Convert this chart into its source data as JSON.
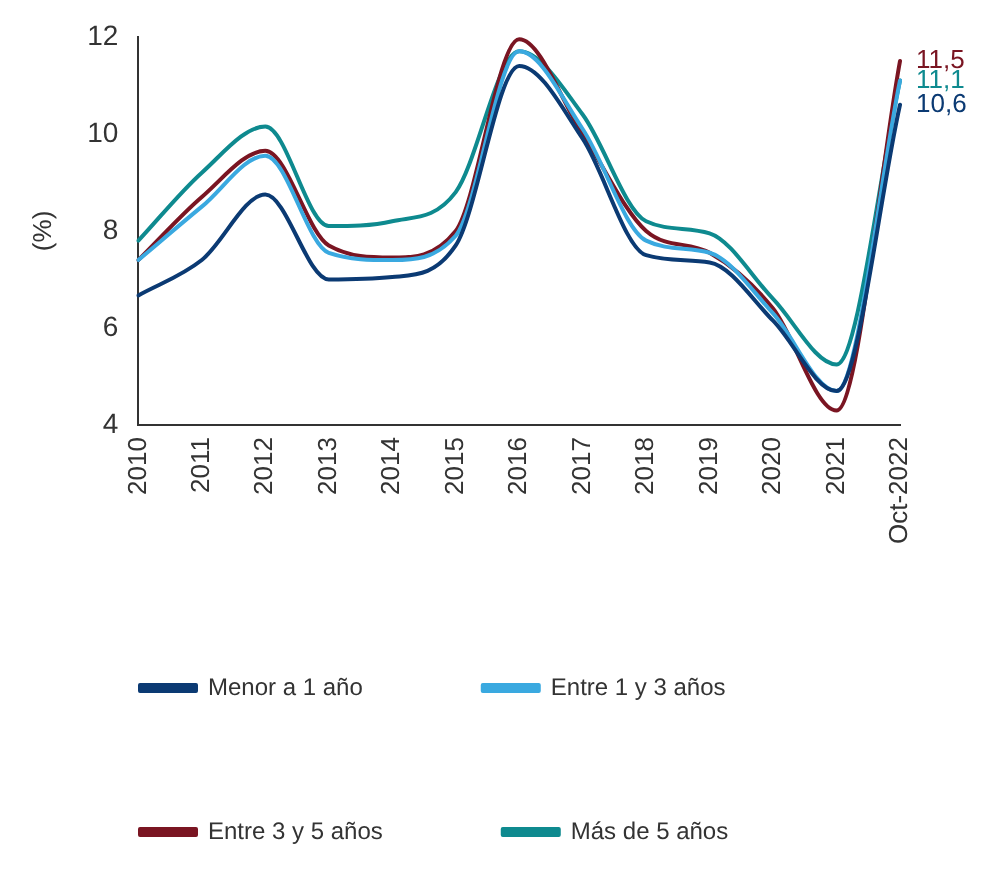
{
  "chart_data": {
    "type": "line",
    "ylabel": "(%)",
    "categories": [
      "2010",
      "2011",
      "2012",
      "2013",
      "2014",
      "2015",
      "2016",
      "2017",
      "2018",
      "2019",
      "2020",
      "2021",
      "Oct-2022"
    ],
    "ylim": [
      4,
      12
    ],
    "yticks": [
      4,
      6,
      8,
      10,
      12
    ],
    "grid": false,
    "legend": "bottom",
    "marker": "none",
    "line_style": "solid",
    "series": [
      {
        "name": "Menor a 1 año",
        "color": "#0b3a73",
        "values": [
          6.67,
          7.4,
          8.75,
          7.0,
          7.05,
          7.7,
          11.4,
          9.9,
          7.5,
          7.35,
          6.15,
          4.7,
          10.6
        ],
        "value_labels": [
          null,
          null,
          null,
          null,
          null,
          null,
          null,
          null,
          null,
          null,
          null,
          null,
          "10,6"
        ]
      },
      {
        "name": "Entre 1 y 3 años",
        "color": "#3aa9e0",
        "values": [
          7.4,
          8.5,
          9.55,
          7.55,
          7.4,
          7.9,
          11.7,
          10.1,
          7.8,
          7.55,
          6.3,
          4.7,
          11.1
        ]
      },
      {
        "name": "Entre 3 y 5 años",
        "color": "#7a1522",
        "values": [
          7.4,
          8.7,
          9.65,
          7.7,
          7.45,
          8.0,
          11.95,
          10.0,
          8.0,
          7.55,
          6.4,
          4.3,
          11.5
        ],
        "value_labels": [
          null,
          null,
          null,
          null,
          null,
          null,
          null,
          null,
          null,
          null,
          null,
          null,
          "11,5"
        ]
      },
      {
        "name": "Más de 5 años",
        "color": "#0e8a8f",
        "values": [
          7.8,
          9.2,
          10.15,
          8.1,
          8.2,
          8.8,
          11.7,
          10.4,
          8.2,
          7.95,
          6.6,
          5.25,
          11.1
        ],
        "value_labels": [
          null,
          null,
          null,
          null,
          null,
          null,
          null,
          null,
          null,
          null,
          null,
          null,
          "11,1"
        ]
      }
    ]
  }
}
